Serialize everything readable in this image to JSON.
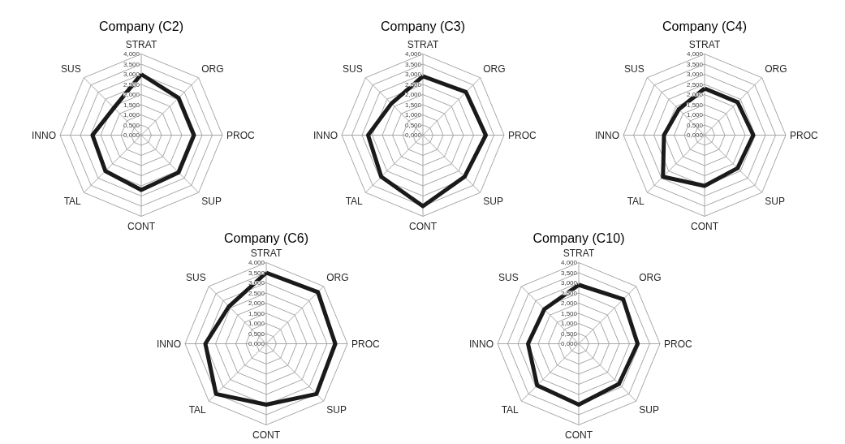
{
  "chart_data": [
    {
      "type": "radar",
      "title": "Company (C2)",
      "categories": [
        "STRAT",
        "ORG",
        "PROC",
        "SUP",
        "CONT",
        "TAL",
        "INNO",
        "SUS"
      ],
      "ylim": [
        0,
        4
      ],
      "yticks": [
        {
          "value": 0,
          "label": "0,000"
        },
        {
          "value": 0.5,
          "label": "0,500"
        },
        {
          "value": 1,
          "label": "1,000"
        },
        {
          "value": 1.5,
          "label": "1,500"
        },
        {
          "value": 2,
          "label": "2,000"
        },
        {
          "value": 2.5,
          "label": "2,500"
        },
        {
          "value": 3,
          "label": "3,000"
        },
        {
          "value": 3.5,
          "label": "3,500"
        },
        {
          "value": 4,
          "label": "4,000"
        }
      ],
      "grid": true,
      "series": [
        {
          "color": "#1a1a1a",
          "values": [
            3.0,
            2.6,
            2.6,
            2.6,
            2.7,
            2.5,
            2.4,
            1.9
          ]
        }
      ]
    },
    {
      "type": "radar",
      "title": "Company (C3)",
      "categories": [
        "STRAT",
        "ORG",
        "PROC",
        "SUP",
        "CONT",
        "TAL",
        "INNO",
        "SUS"
      ],
      "ylim": [
        0,
        4
      ],
      "yticks": [
        {
          "value": 0,
          "label": "0,000"
        },
        {
          "value": 0.5,
          "label": "0,500"
        },
        {
          "value": 1,
          "label": "1,000"
        },
        {
          "value": 1.5,
          "label": "1,500"
        },
        {
          "value": 2,
          "label": "2,000"
        },
        {
          "value": 2.5,
          "label": "2,500"
        },
        {
          "value": 3,
          "label": "3,000"
        },
        {
          "value": 3.5,
          "label": "3,500"
        },
        {
          "value": 4,
          "label": "4,000"
        }
      ],
      "grid": true,
      "series": [
        {
          "color": "#1a1a1a",
          "values": [
            2.9,
            3.0,
            3.1,
            2.9,
            3.5,
            2.9,
            2.7,
            2.2
          ]
        }
      ]
    },
    {
      "type": "radar",
      "title": "Company (C4)",
      "categories": [
        "STRAT",
        "ORG",
        "PROC",
        "SUP",
        "CONT",
        "TAL",
        "INNO",
        "SUS"
      ],
      "ylim": [
        0,
        4
      ],
      "yticks": [
        {
          "value": 0,
          "label": "0,000"
        },
        {
          "value": 0.5,
          "label": "0,500"
        },
        {
          "value": 1,
          "label": "1,000"
        },
        {
          "value": 1.5,
          "label": "1,500"
        },
        {
          "value": 2,
          "label": "2,000"
        },
        {
          "value": 2.5,
          "label": "2,500"
        },
        {
          "value": 3,
          "label": "3,000"
        },
        {
          "value": 3.5,
          "label": "3,500"
        },
        {
          "value": 4,
          "label": "4,000"
        }
      ],
      "grid": true,
      "series": [
        {
          "color": "#1a1a1a",
          "values": [
            2.3,
            2.3,
            2.4,
            2.3,
            2.5,
            2.9,
            2.0,
            1.8
          ]
        }
      ]
    },
    {
      "type": "radar",
      "title": "Company (C6)",
      "categories": [
        "STRAT",
        "ORG",
        "PROC",
        "SUP",
        "CONT",
        "TAL",
        "INNO",
        "SUS"
      ],
      "ylim": [
        0,
        4
      ],
      "yticks": [
        {
          "value": 0,
          "label": "0,000"
        },
        {
          "value": 0.5,
          "label": "0,500"
        },
        {
          "value": 1,
          "label": "1,000"
        },
        {
          "value": 1.5,
          "label": "1,500"
        },
        {
          "value": 2,
          "label": "2,000"
        },
        {
          "value": 2.5,
          "label": "2,500"
        },
        {
          "value": 3,
          "label": "3,000"
        },
        {
          "value": 3.5,
          "label": "3,500"
        },
        {
          "value": 4,
          "label": "4,000"
        }
      ],
      "grid": true,
      "series": [
        {
          "color": "#1a1a1a",
          "values": [
            3.5,
            3.6,
            3.4,
            3.5,
            3.0,
            3.5,
            3.0,
            2.6
          ]
        }
      ]
    },
    {
      "type": "radar",
      "title": "Company (C10)",
      "categories": [
        "STRAT",
        "ORG",
        "PROC",
        "SUP",
        "CONT",
        "TAL",
        "INNO",
        "SUS"
      ],
      "ylim": [
        0,
        4
      ],
      "yticks": [
        {
          "value": 0,
          "label": "0,000"
        },
        {
          "value": 0.5,
          "label": "0,500"
        },
        {
          "value": 1,
          "label": "1,000"
        },
        {
          "value": 1.5,
          "label": "1,500"
        },
        {
          "value": 2,
          "label": "2,000"
        },
        {
          "value": 2.5,
          "label": "2,500"
        },
        {
          "value": 3,
          "label": "3,000"
        },
        {
          "value": 3.5,
          "label": "3,500"
        },
        {
          "value": 4,
          "label": "4,000"
        }
      ],
      "grid": true,
      "series": [
        {
          "color": "#1a1a1a",
          "values": [
            2.9,
            3.1,
            2.9,
            2.8,
            3.0,
            2.9,
            2.5,
            2.4
          ]
        }
      ]
    }
  ]
}
